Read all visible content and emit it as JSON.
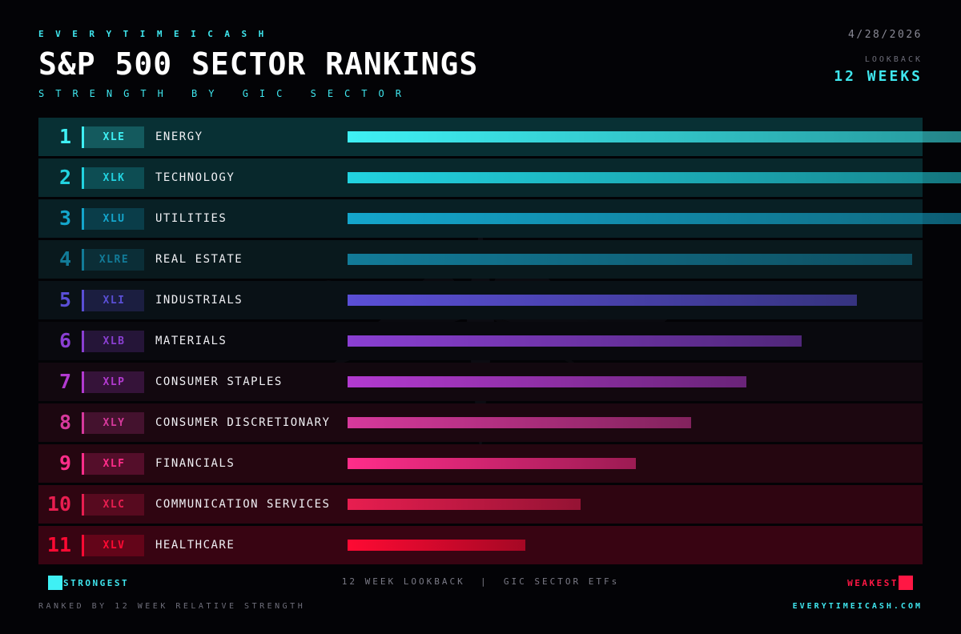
{
  "header": {
    "brand": "EVERYTIMEICASH",
    "title": "S&P 500 SECTOR RANKINGS",
    "subtitle": "STRENGTH BY GIC SECTOR",
    "date": "4/28/2026",
    "lookback_label": "LOOKBACK",
    "lookback_value": "12 WEEKS"
  },
  "chart_data": {
    "type": "bar",
    "orientation": "horizontal",
    "title": "S&P 500 SECTOR RANKINGS",
    "subtitle": "STRENGTH BY GIC SECTOR",
    "value_scale": "relative strength (estimated, top bar = 1.00, no axis printed)",
    "rows": [
      {
        "rank": "1",
        "ticker": "XLE",
        "sector": "ENERGY",
        "value": 1.0,
        "color": "#3ff0f4"
      },
      {
        "rank": "2",
        "ticker": "XLK",
        "sector": "TECHNOLOGY",
        "value": 1.0,
        "color": "#22d3e0"
      },
      {
        "rank": "3",
        "ticker": "XLU",
        "sector": "UTILITIES",
        "value": 1.0,
        "color": "#14a6cc"
      },
      {
        "rank": "4",
        "ticker": "XLRE",
        "sector": "REAL ESTATE",
        "value": 0.92,
        "color": "#127b98"
      },
      {
        "rank": "5",
        "ticker": "XLI",
        "sector": "INDUSTRIALS",
        "value": 0.83,
        "color": "#5a4fd6"
      },
      {
        "rank": "6",
        "ticker": "XLB",
        "sector": "MATERIALS",
        "value": 0.74,
        "color": "#8a3fd2"
      },
      {
        "rank": "7",
        "ticker": "XLP",
        "sector": "CONSUMER STAPLES",
        "value": 0.65,
        "color": "#b23ad0"
      },
      {
        "rank": "8",
        "ticker": "XLY",
        "sector": "CONSUMER DISCRETIONARY",
        "value": 0.56,
        "color": "#d6399c"
      },
      {
        "rank": "9",
        "ticker": "XLF",
        "sector": "FINANCIALS",
        "value": 0.47,
        "color": "#ff2d8a"
      },
      {
        "rank": "10",
        "ticker": "XLC",
        "sector": "COMMUNICATION SERVICES",
        "value": 0.38,
        "color": "#e81e50"
      },
      {
        "rank": "11",
        "ticker": "XLV",
        "sector": "HEALTHCARE",
        "value": 0.29,
        "color": "#ff0a33"
      }
    ]
  },
  "legend": {
    "strongest": "STRONGEST",
    "weakest": "WEAKEST",
    "center": "12 WEEK LOOKBACK  |  GIC SECTOR ETFs",
    "strong_color": "#3ff0f4",
    "weak_color": "#ff1744"
  },
  "footer": {
    "note": "RANKED BY 12 WEEK RELATIVE STRENGTH",
    "site": "EVERYTIMEICASH.COM"
  }
}
